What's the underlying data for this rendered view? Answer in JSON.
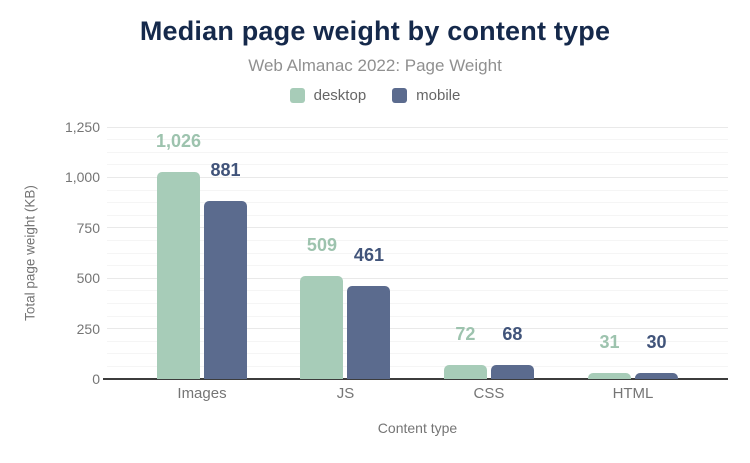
{
  "chart_data": {
    "type": "bar",
    "title": "Median page weight by content type",
    "subtitle": "Web Almanac 2022: Page Weight",
    "xlabel": "Content type",
    "ylabel": "Total page weight (KB)",
    "categories": [
      "Images",
      "JS",
      "CSS",
      "HTML"
    ],
    "series": [
      {
        "name": "desktop",
        "color": "#a7ccb8",
        "label_color": "#9dc3ae",
        "values": [
          1026,
          509,
          72,
          31
        ],
        "value_labels": [
          "1,026",
          "509",
          "72",
          "31"
        ]
      },
      {
        "name": "mobile",
        "color": "#5b6b8e",
        "label_color": "#41547a",
        "values": [
          881,
          461,
          68,
          30
        ],
        "value_labels": [
          "881",
          "461",
          "68",
          "30"
        ]
      }
    ],
    "ylim": [
      0,
      1250
    ],
    "yticks": [
      {
        "value": 0,
        "label": "0"
      },
      {
        "value": 250,
        "label": "250"
      },
      {
        "value": 500,
        "label": "500"
      },
      {
        "value": 750,
        "label": "750"
      },
      {
        "value": 1000,
        "label": "1,000"
      },
      {
        "value": 1250,
        "label": "1,250"
      }
    ],
    "minor_tick_interval": 62.5,
    "grid": true,
    "legend_position": "top"
  },
  "colors": {
    "title": "#15294b",
    "subtitle": "#909090",
    "axis_text": "#757575",
    "legend_text": "#666666",
    "baseline": "#3c3c3c",
    "grid_major": "#e9e9e9",
    "grid_minor": "#f5f5f5",
    "background": "#ffffff"
  }
}
